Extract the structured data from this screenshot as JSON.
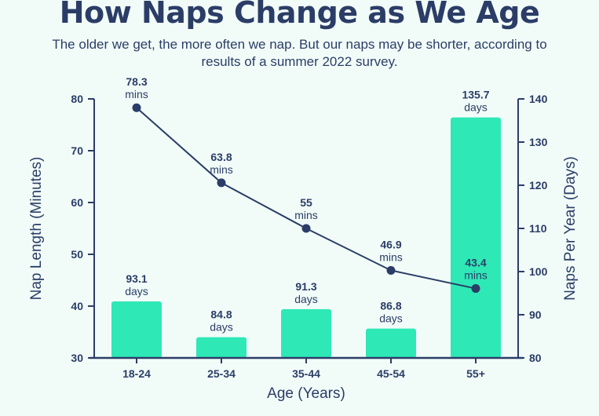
{
  "title": "How Naps Change as We Age",
  "subtitle": "The older we get, the more often we nap. But our naps may be shorter, according to results of a summer 2022 survey.",
  "colors": {
    "background": "#f1fcf8",
    "bar": "#2ee8b6",
    "line": "#2b3d67",
    "text": "#2b3d67"
  },
  "chart_data": {
    "type": "bar+line",
    "categories": [
      "18-24",
      "25-34",
      "35-44",
      "45-54",
      "55+"
    ],
    "xlabel": "Age (Years)",
    "ylabel_left": "Nap Length (Minutes)",
    "ylabel_right": "Naps Per Year (Days)",
    "ylim_left": [
      30,
      80
    ],
    "ylim_right": [
      80,
      140
    ],
    "yticks_left": [
      30,
      40,
      50,
      60,
      70,
      80
    ],
    "yticks_right": [
      80,
      90,
      100,
      110,
      120,
      130,
      140
    ],
    "grid": false,
    "series": [
      {
        "name": "Naps Per Year (Days)",
        "type": "bar",
        "axis": "right",
        "values": [
          93.1,
          84.8,
          91.3,
          86.8,
          135.7
        ],
        "labels": [
          "93.1",
          "84.8",
          "91.3",
          "86.8",
          "135.7"
        ],
        "unit": "days"
      },
      {
        "name": "Nap Length (Minutes)",
        "type": "line",
        "axis": "left",
        "values": [
          78.3,
          63.8,
          55,
          46.9,
          43.4
        ],
        "labels": [
          "78.3",
          "63.8",
          "55",
          "46.9",
          "43.4"
        ],
        "unit": "mins"
      }
    ]
  }
}
